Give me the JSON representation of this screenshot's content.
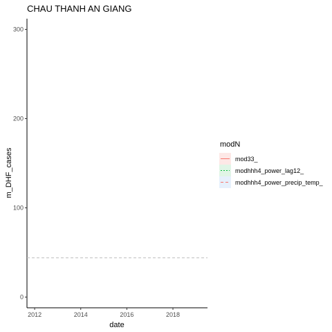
{
  "chart_data": {
    "type": "line",
    "title": "CHAU THANH AN GIANG",
    "xlabel": "date",
    "ylabel": "m_DHF_cases",
    "x_ticks": [
      "2012",
      "2014",
      "2016",
      "2018"
    ],
    "y_ticks": [
      0,
      100,
      200,
      300
    ],
    "xlim": [
      "2011-09",
      "2019-07"
    ],
    "ylim": [
      -12,
      312
    ],
    "grid": false,
    "reference_line": {
      "y": 44,
      "style": "dashed",
      "color": "#bebebe"
    },
    "legend": {
      "title": "modN",
      "placement": "right",
      "entries": [
        {
          "name": "mod33_",
          "color": "#f8766d",
          "dash": "solid",
          "fill": "#fde8e6"
        },
        {
          "name": "modhhh4_power_lag12_",
          "color": "#00ba38",
          "dash": "dotted",
          "fill": "#e0f5e6"
        },
        {
          "name": "modhhh4_power_precip_temp_",
          "color": "#f8766d",
          "dash": "dashed",
          "fill": "#e6f0fc"
        }
      ]
    },
    "series": [
      {
        "name": "mod33_",
        "points": []
      },
      {
        "name": "modhhh4_power_lag12_",
        "points": []
      },
      {
        "name": "modhhh4_power_precip_temp_",
        "points": []
      }
    ]
  }
}
